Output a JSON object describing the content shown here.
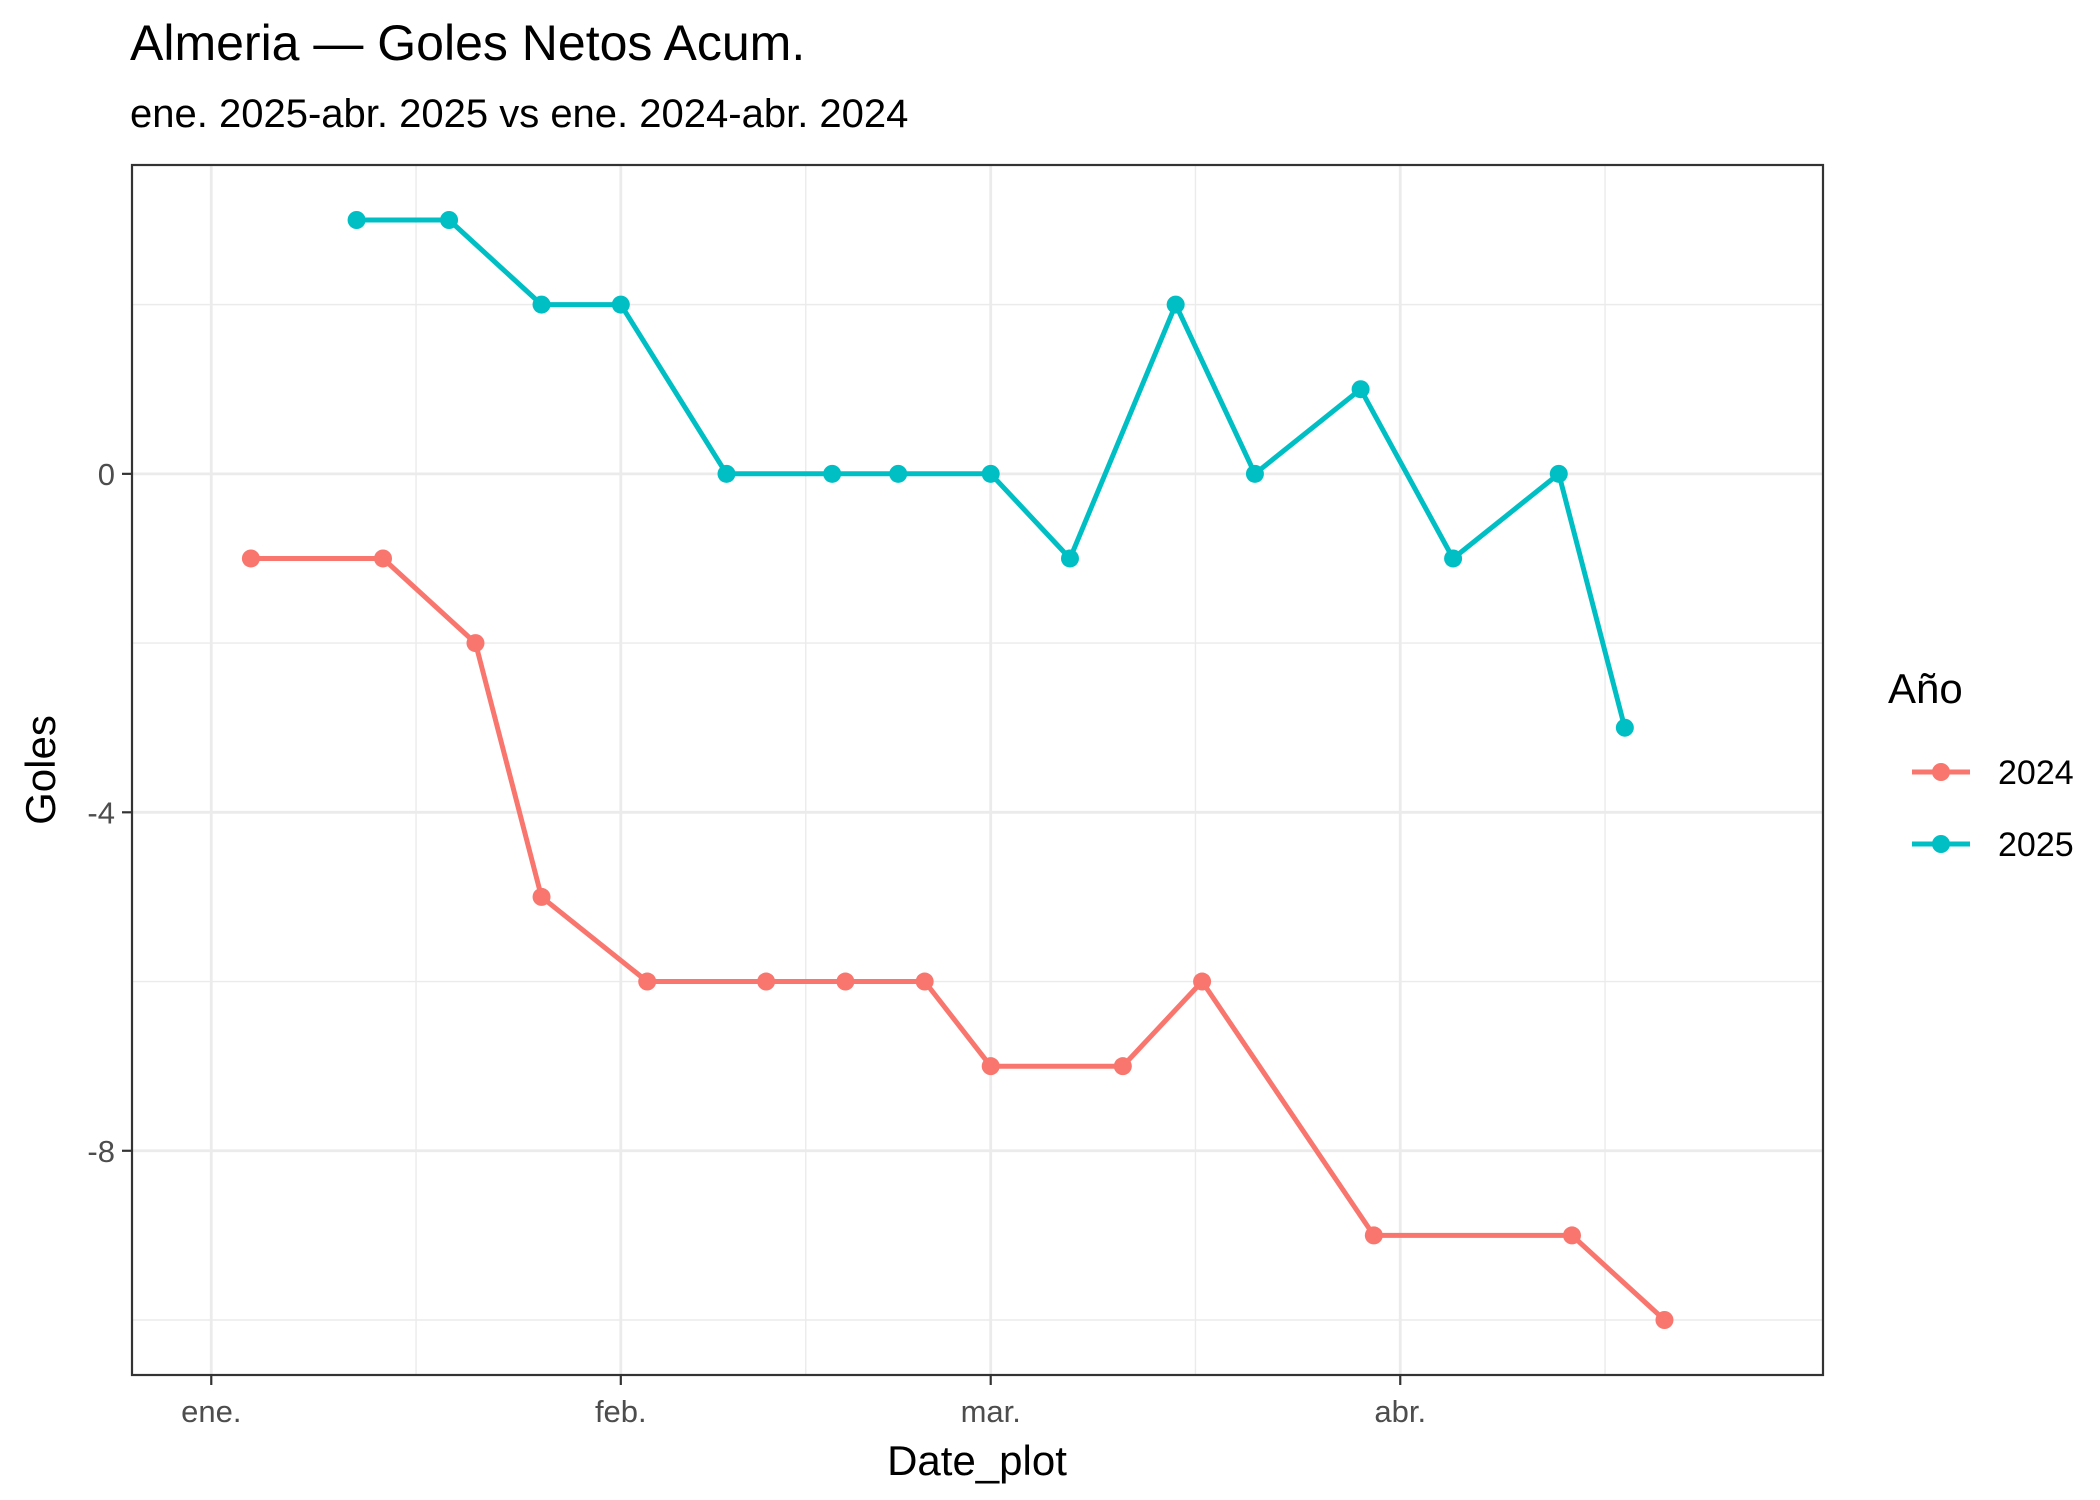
{
  "chart_data": {
    "type": "line",
    "title": "Almeria — Goles Netos Acum.",
    "subtitle": "ene. 2025-abr. 2025 vs ene. 2024-abr. 2024",
    "xlabel": "Date_plot",
    "ylabel": "Goles",
    "x_tick_labels": [
      "ene.",
      "feb.",
      "mar.",
      "abr."
    ],
    "x_tick_dates": [
      "2025-01-01",
      "2025-02-01",
      "2025-03-01",
      "2025-04-01"
    ],
    "y_ticks": [
      0,
      -4,
      -8
    ],
    "xlim": [
      "2024-12-26",
      "2025-05-03"
    ],
    "ylim": [
      -10.65,
      3.65
    ],
    "grid": true,
    "legend_title": "Año",
    "legend_position": "right",
    "series": [
      {
        "name": "2024",
        "color": "#F8766D",
        "x": [
          "2025-01-04",
          "2025-01-14",
          "2025-01-21",
          "2025-01-26",
          "2025-02-03",
          "2025-02-12",
          "2025-02-18",
          "2025-02-24",
          "2025-03-01",
          "2025-03-11",
          "2025-03-17",
          "2025-03-30",
          "2025-04-14",
          "2025-04-21"
        ],
        "y": [
          -1,
          -1,
          -2,
          -5,
          -6,
          -6,
          -6,
          -6,
          -7,
          -7,
          -6,
          -9,
          -9,
          -10
        ]
      },
      {
        "name": "2025",
        "color": "#00BFC4",
        "x": [
          "2025-01-12",
          "2025-01-19",
          "2025-01-26",
          "2025-02-01",
          "2025-02-09",
          "2025-02-17",
          "2025-02-22",
          "2025-03-01",
          "2025-03-07",
          "2025-03-15",
          "2025-03-21",
          "2025-03-29",
          "2025-04-05",
          "2025-04-13",
          "2025-04-18"
        ],
        "y": [
          3,
          3,
          2,
          2,
          0,
          0,
          0,
          0,
          -1,
          2,
          0,
          1,
          -1,
          0,
          -3
        ]
      }
    ]
  }
}
